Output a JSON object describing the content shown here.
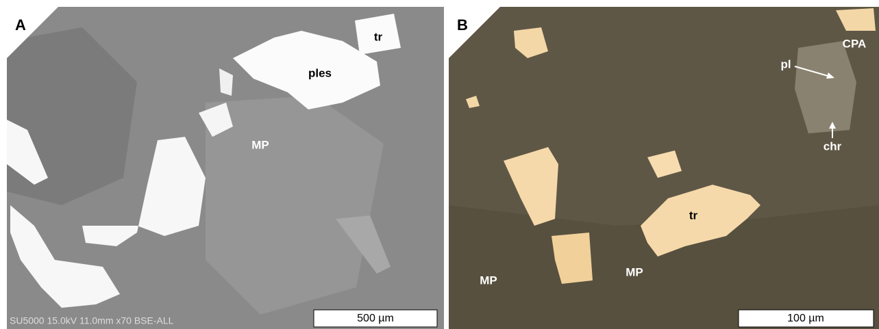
{
  "panels": [
    {
      "label": "A",
      "annotations": [
        "tr",
        "ples",
        "MP"
      ],
      "scale_bar": "500 µm",
      "metadata": "SU5000 15.0kV 11.0mm x70 BSE-ALL"
    },
    {
      "label": "B",
      "annotations": [
        "CPA",
        "pl",
        "chr",
        "tr",
        "MP",
        "MP"
      ],
      "scale_bar": "100 µm"
    }
  ]
}
